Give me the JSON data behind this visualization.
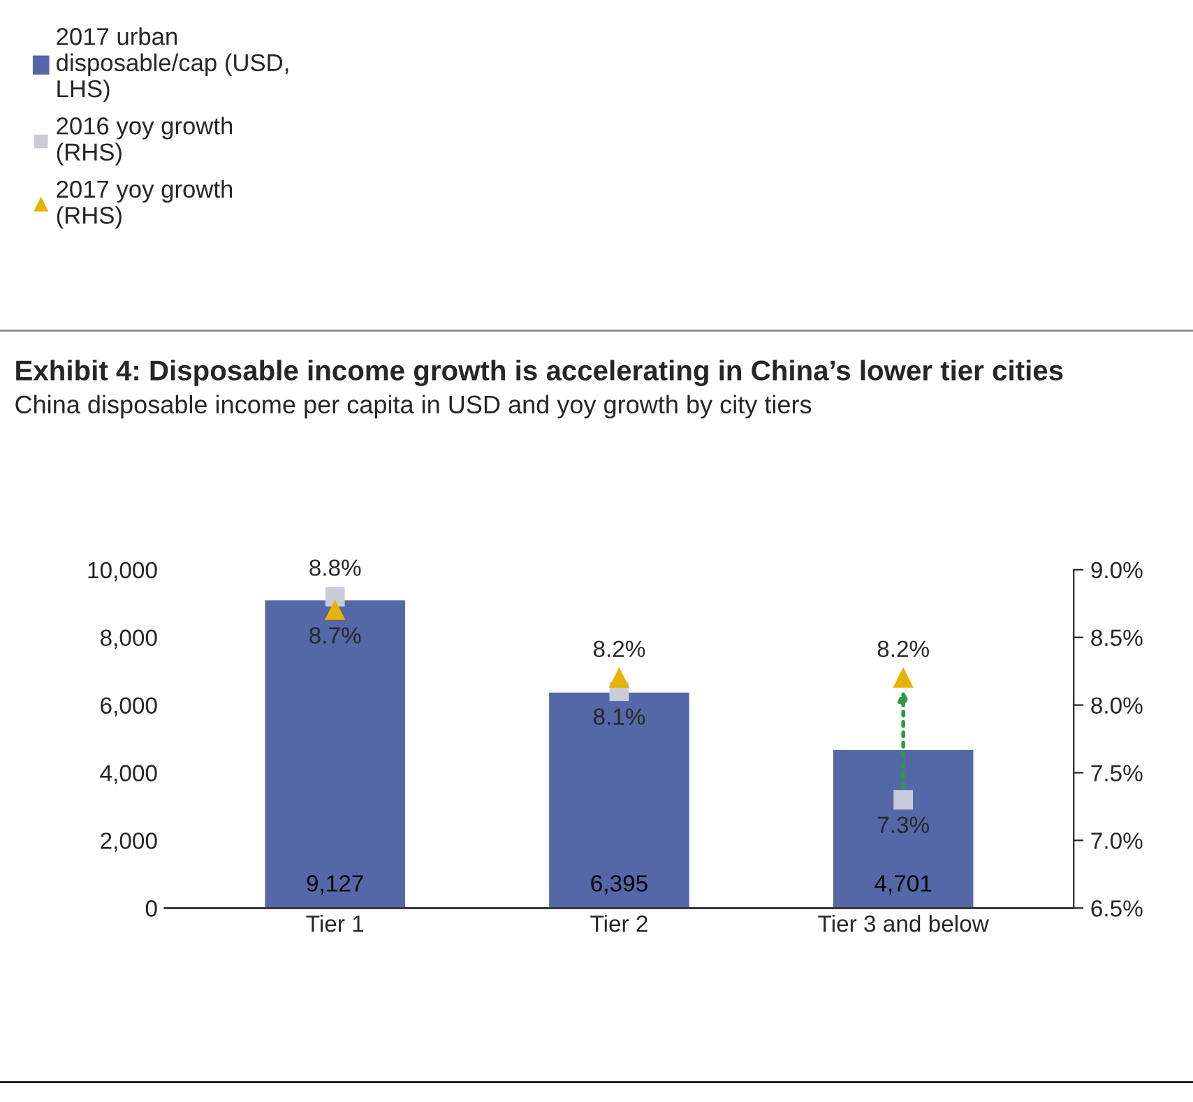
{
  "chart_data": {
    "type": "bar",
    "title": "Exhibit 4: Disposable income growth is accelerating in China’s lower tier cities",
    "subtitle": "China disposable income per capita in USD and yoy growth by city tiers",
    "categories": [
      "Tier 1",
      "Tier 2",
      "Tier 3 and below"
    ],
    "series": [
      {
        "name": "2017 urban\ndisposable/cap (USD,\nLHS)",
        "color": "#5468a8",
        "values": [
          9127,
          6395,
          4701
        ],
        "value_labels": [
          "9,127",
          "6,395",
          "4,701"
        ]
      },
      {
        "name": "2016 yoy growth\n(RHS)",
        "type": "scatter",
        "marker": "square",
        "axis": "y2",
        "color": "#c9ccd8",
        "values": [
          8.8,
          8.1,
          7.3
        ],
        "value_labels": [
          "8.8%",
          "8.1%",
          "7.3%"
        ]
      },
      {
        "name": "2017 yoy growth\n(RHS)",
        "type": "scatter",
        "marker": "triangle",
        "axis": "y2",
        "color": "#e6b400",
        "values": [
          8.7,
          8.2,
          8.2
        ],
        "value_labels": [
          "8.7%",
          "8.2%",
          "8.2%"
        ]
      }
    ],
    "ylim": [
      0,
      10000
    ],
    "yticks": [
      {
        "value": 0,
        "label": "0"
      },
      {
        "value": 2000,
        "label": "2,000"
      },
      {
        "value": 4000,
        "label": "4,000"
      },
      {
        "value": 6000,
        "label": "6,000"
      },
      {
        "value": 8000,
        "label": "8,000"
      },
      {
        "value": 10000,
        "label": "10,000"
      }
    ],
    "y2lim": [
      6.5,
      9.0
    ],
    "y2ticks": [
      {
        "value": 6.5,
        "label": "6.5%"
      },
      {
        "value": 7.0,
        "label": "7.0%"
      },
      {
        "value": 7.5,
        "label": "7.5%"
      },
      {
        "value": 8.0,
        "label": "8.0%"
      },
      {
        "value": 8.5,
        "label": "8.5%"
      },
      {
        "value": 9.0,
        "label": "9.0%"
      }
    ],
    "legend": "top left",
    "grid": false
  }
}
